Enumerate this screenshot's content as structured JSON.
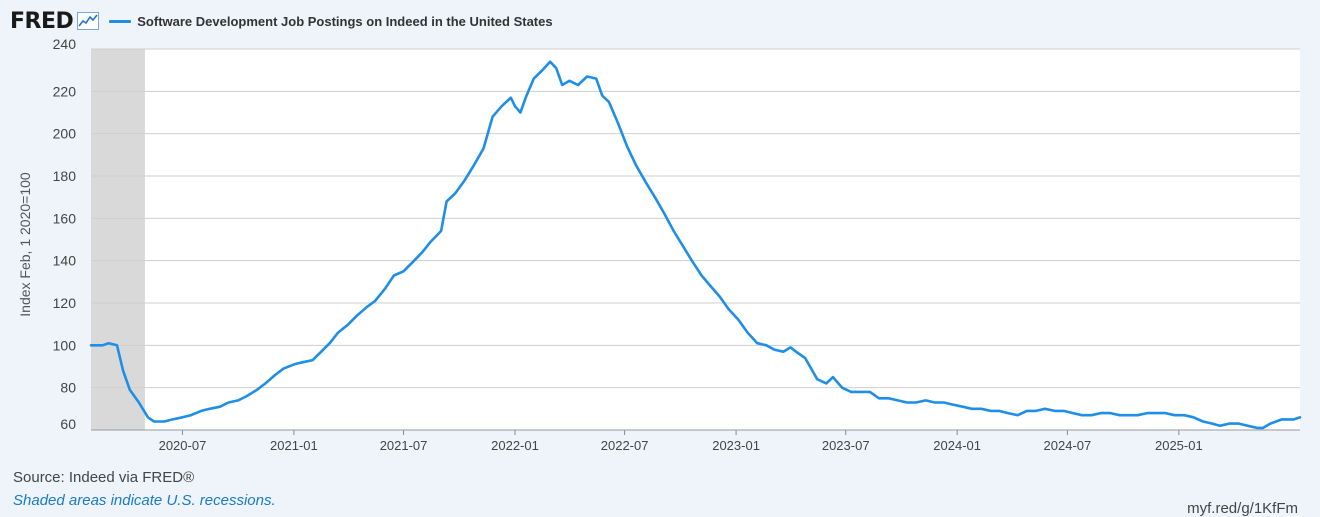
{
  "header": {
    "logo": "FRED",
    "logo_icon": "line-chart-icon"
  },
  "footer": {
    "source": "Source: Indeed via FRED®",
    "note": "Shaded areas indicate U.S. recessions.",
    "url": "myf.red/g/1KfFm"
  },
  "colors": {
    "series": "#1f8ee6",
    "recession": "#d9d9d9",
    "grid": "#cfcfcf",
    "background": "#eef4fa",
    "plot": "#ffffff"
  },
  "chart_data": {
    "type": "line",
    "ylabel": "Index Feb, 1 2020=100",
    "ylim": [
      60,
      240
    ],
    "y_ticks": [
      60,
      80,
      100,
      120,
      140,
      160,
      180,
      200,
      220,
      240
    ],
    "x_ticks": [
      "2020-07",
      "2021-01",
      "2021-07",
      "2022-01",
      "2022-07",
      "2023-01",
      "2023-07",
      "2024-01",
      "2024-07",
      "2025-01"
    ],
    "xlim": [
      "2020-02-01",
      "2025-07-20"
    ],
    "recessions": [
      {
        "start": "2020-02-01",
        "end": "2020-04-30"
      }
    ],
    "grid": true,
    "series": [
      {
        "name": "Software Development Job Postings on Indeed in the United States",
        "points": [
          [
            "2020-02-01",
            100
          ],
          [
            "2020-02-20",
            100
          ],
          [
            "2020-03-01",
            101
          ],
          [
            "2020-03-15",
            100
          ],
          [
            "2020-03-25",
            88
          ],
          [
            "2020-04-05",
            79
          ],
          [
            "2020-04-20",
            73
          ],
          [
            "2020-05-05",
            66
          ],
          [
            "2020-05-15",
            64
          ],
          [
            "2020-06-01",
            64
          ],
          [
            "2020-06-15",
            65
          ],
          [
            "2020-07-01",
            66
          ],
          [
            "2020-07-15",
            67
          ],
          [
            "2020-08-01",
            69
          ],
          [
            "2020-08-15",
            70
          ],
          [
            "2020-09-01",
            71
          ],
          [
            "2020-09-15",
            73
          ],
          [
            "2020-10-01",
            74
          ],
          [
            "2020-10-15",
            76
          ],
          [
            "2020-11-01",
            79
          ],
          [
            "2020-11-15",
            82
          ],
          [
            "2020-12-01",
            86
          ],
          [
            "2020-12-15",
            89
          ],
          [
            "2021-01-01",
            91
          ],
          [
            "2021-01-15",
            92
          ],
          [
            "2021-02-01",
            93
          ],
          [
            "2021-02-15",
            97
          ],
          [
            "2021-03-01",
            101
          ],
          [
            "2021-03-15",
            106
          ],
          [
            "2021-04-01",
            110
          ],
          [
            "2021-04-15",
            114
          ],
          [
            "2021-05-01",
            118
          ],
          [
            "2021-05-15",
            121
          ],
          [
            "2021-06-01",
            127
          ],
          [
            "2021-06-15",
            133
          ],
          [
            "2021-07-01",
            135
          ],
          [
            "2021-07-15",
            139
          ],
          [
            "2021-08-01",
            144
          ],
          [
            "2021-08-15",
            149
          ],
          [
            "2021-09-01",
            154
          ],
          [
            "2021-09-10",
            168
          ],
          [
            "2021-09-25",
            172
          ],
          [
            "2021-10-10",
            178
          ],
          [
            "2021-10-25",
            185
          ],
          [
            "2021-11-10",
            193
          ],
          [
            "2021-11-25",
            208
          ],
          [
            "2021-12-10",
            213
          ],
          [
            "2021-12-25",
            217
          ],
          [
            "2022-01-01",
            213
          ],
          [
            "2022-01-10",
            210
          ],
          [
            "2022-01-20",
            218
          ],
          [
            "2022-02-01",
            226
          ],
          [
            "2022-02-15",
            230
          ],
          [
            "2022-02-28",
            234
          ],
          [
            "2022-03-10",
            231
          ],
          [
            "2022-03-20",
            223
          ],
          [
            "2022-04-01",
            225
          ],
          [
            "2022-04-15",
            223
          ],
          [
            "2022-04-30",
            227
          ],
          [
            "2022-05-15",
            226
          ],
          [
            "2022-05-25",
            218
          ],
          [
            "2022-06-05",
            215
          ],
          [
            "2022-06-20",
            205
          ],
          [
            "2022-07-05",
            194
          ],
          [
            "2022-07-20",
            185
          ],
          [
            "2022-08-05",
            177
          ],
          [
            "2022-08-20",
            170
          ],
          [
            "2022-09-05",
            162
          ],
          [
            "2022-09-20",
            154
          ],
          [
            "2022-10-05",
            147
          ],
          [
            "2022-10-20",
            140
          ],
          [
            "2022-11-05",
            133
          ],
          [
            "2022-11-20",
            128
          ],
          [
            "2022-12-05",
            123
          ],
          [
            "2022-12-20",
            117
          ],
          [
            "2023-01-05",
            112
          ],
          [
            "2023-01-20",
            106
          ],
          [
            "2023-02-05",
            101
          ],
          [
            "2023-02-20",
            100
          ],
          [
            "2023-03-05",
            98
          ],
          [
            "2023-03-20",
            97
          ],
          [
            "2023-04-01",
            99
          ],
          [
            "2023-04-10",
            97
          ],
          [
            "2023-04-25",
            94
          ],
          [
            "2023-05-05",
            89
          ],
          [
            "2023-05-15",
            84
          ],
          [
            "2023-05-30",
            82
          ],
          [
            "2023-06-10",
            85
          ],
          [
            "2023-06-25",
            80
          ],
          [
            "2023-07-10",
            78
          ],
          [
            "2023-07-25",
            78
          ],
          [
            "2023-08-10",
            78
          ],
          [
            "2023-08-25",
            75
          ],
          [
            "2023-09-10",
            75
          ],
          [
            "2023-09-25",
            74
          ],
          [
            "2023-10-10",
            73
          ],
          [
            "2023-10-25",
            73
          ],
          [
            "2023-11-10",
            74
          ],
          [
            "2023-11-25",
            73
          ],
          [
            "2023-12-10",
            73
          ],
          [
            "2023-12-25",
            72
          ],
          [
            "2024-01-10",
            71
          ],
          [
            "2024-01-25",
            70
          ],
          [
            "2024-02-10",
            70
          ],
          [
            "2024-02-25",
            69
          ],
          [
            "2024-03-10",
            69
          ],
          [
            "2024-03-25",
            68
          ],
          [
            "2024-04-10",
            67
          ],
          [
            "2024-04-25",
            69
          ],
          [
            "2024-05-10",
            69
          ],
          [
            "2024-05-25",
            70
          ],
          [
            "2024-06-10",
            69
          ],
          [
            "2024-06-25",
            69
          ],
          [
            "2024-07-10",
            68
          ],
          [
            "2024-07-25",
            67
          ],
          [
            "2024-08-10",
            67
          ],
          [
            "2024-08-25",
            68
          ],
          [
            "2024-09-10",
            68
          ],
          [
            "2024-09-25",
            67
          ],
          [
            "2024-10-10",
            67
          ],
          [
            "2024-10-25",
            67
          ],
          [
            "2024-11-10",
            68
          ],
          [
            "2024-11-25",
            68
          ],
          [
            "2024-12-10",
            68
          ],
          [
            "2024-12-25",
            67
          ],
          [
            "2025-01-10",
            67
          ],
          [
            "2025-01-25",
            66
          ],
          [
            "2025-02-10",
            64
          ],
          [
            "2025-02-25",
            63
          ],
          [
            "2025-03-10",
            62
          ],
          [
            "2025-03-25",
            63
          ],
          [
            "2025-04-10",
            63
          ],
          [
            "2025-04-25",
            62
          ],
          [
            "2025-05-10",
            61
          ],
          [
            "2025-05-20",
            61
          ],
          [
            "2025-06-01",
            63
          ],
          [
            "2025-06-20",
            65
          ],
          [
            "2025-07-10",
            65
          ],
          [
            "2025-07-20",
            66
          ]
        ]
      }
    ]
  }
}
